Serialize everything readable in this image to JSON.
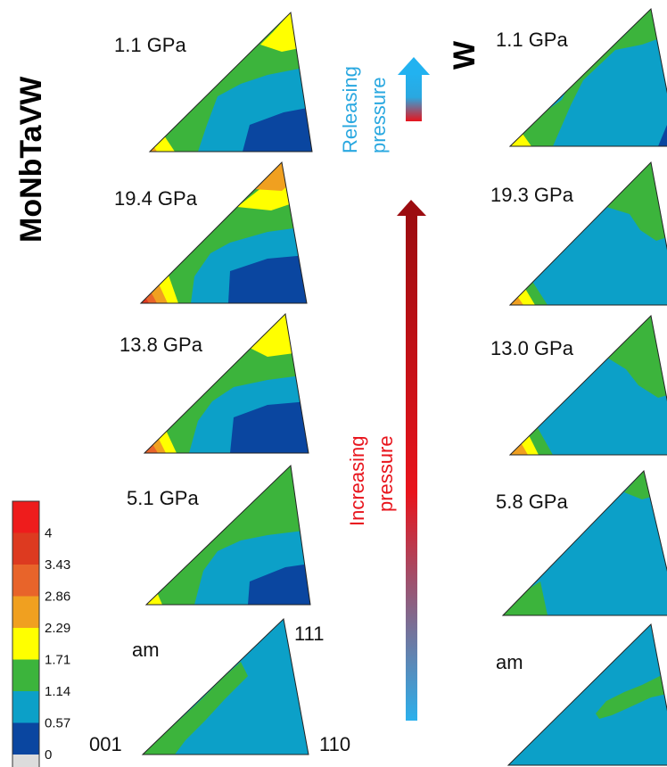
{
  "figure": {
    "materials": [
      "MoNbTaVW",
      "W"
    ],
    "pressure_arrows": {
      "release_label": [
        "Releasing",
        "pressure"
      ],
      "increase_label": [
        "Increasing",
        "pressure"
      ],
      "release_color": "#2aa8e0",
      "increase_color": "#e8141c"
    },
    "left_column": [
      {
        "pressure": "1.1 GPa"
      },
      {
        "pressure": "19.4 GPa"
      },
      {
        "pressure": "13.8 GPa"
      },
      {
        "pressure": "5.1 GPa"
      },
      {
        "pressure": "am"
      }
    ],
    "right_column": [
      {
        "pressure": "1.1 GPa"
      },
      {
        "pressure": "19.3 GPa"
      },
      {
        "pressure": "13.0 GPa"
      },
      {
        "pressure": "5.8 GPa"
      },
      {
        "pressure": "am"
      }
    ],
    "corner_labels": {
      "origin": "001",
      "top": "111",
      "right": "110"
    },
    "colorbar": {
      "ticks": [
        "4",
        "3.43",
        "2.86",
        "2.29",
        "1.71",
        "1.14",
        "0.57",
        "0"
      ],
      "colors": [
        "#ee1c1c",
        "#dd3a20",
        "#e8642a",
        "#f0a020",
        "#ffff00",
        "#3cb43c",
        "#0ca0c8",
        "#0a46a0",
        "#dcdcdc"
      ]
    }
  }
}
